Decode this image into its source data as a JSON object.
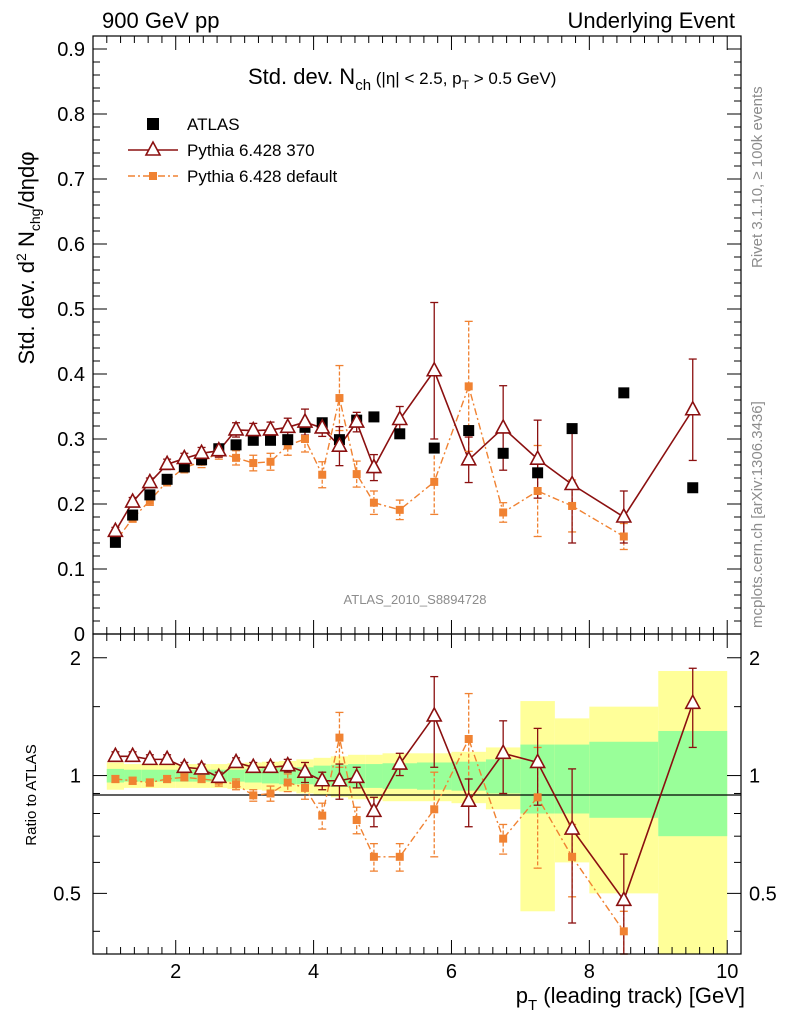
{
  "header": {
    "left": "900 GeV pp",
    "right": "Underlying Event"
  },
  "side_text": {
    "upper": "Rivet 3.1.10, ≥ 100k events",
    "lower": "mcplots.cern.ch [arXiv:1306.3436]"
  },
  "analysis_label": "ATLAS_2010_S8894728",
  "colors": {
    "data": "#000000",
    "pythia_370": "#8b1010",
    "pythia_default": "#f08232",
    "band_inner": "#99ff99",
    "band_outer": "#ffff99"
  },
  "chart_data": [
    {
      "type": "scatter",
      "panel": "main",
      "title": "Std. dev. N_ch (|η| < 2.5, p_T > 0.5 GeV)",
      "ylabel": "Std. dev. d² N_chg/dηdφ",
      "xlim": [
        0.8,
        10.2
      ],
      "ylim": [
        0,
        0.92
      ],
      "yticks": [
        0,
        0.1,
        0.2,
        0.3,
        0.4,
        0.5,
        0.6,
        0.7,
        0.8,
        0.9
      ],
      "legend_position": "top-left",
      "series": [
        {
          "name": "ATLAS",
          "marker": "square",
          "x": [
            1.125,
            1.375,
            1.625,
            1.875,
            2.125,
            2.375,
            2.625,
            2.875,
            3.125,
            3.375,
            3.625,
            3.875,
            4.125,
            4.375,
            4.625,
            4.875,
            5.25,
            5.75,
            6.25,
            6.75,
            7.25,
            7.75,
            8.5,
            9.5
          ],
          "y": [
            0.141,
            0.183,
            0.214,
            0.238,
            0.257,
            0.268,
            0.285,
            0.291,
            0.298,
            0.298,
            0.299,
            0.318,
            0.325,
            0.299,
            0.329,
            0.334,
            0.308,
            0.286,
            0.313,
            0.278,
            0.248,
            0.316,
            0.371,
            0.225
          ]
        },
        {
          "name": "Pythia 6.428 370",
          "marker": "open-triangle",
          "x": [
            1.125,
            1.375,
            1.625,
            1.875,
            2.125,
            2.375,
            2.625,
            2.875,
            3.125,
            3.375,
            3.625,
            3.875,
            4.125,
            4.375,
            4.625,
            4.875,
            5.25,
            5.75,
            6.25,
            6.75,
            7.25,
            7.75,
            8.5,
            9.5
          ],
          "y": [
            0.158,
            0.203,
            0.233,
            0.261,
            0.27,
            0.278,
            0.282,
            0.314,
            0.313,
            0.314,
            0.318,
            0.326,
            0.317,
            0.289,
            0.326,
            0.256,
            0.33,
            0.405,
            0.268,
            0.317,
            0.269,
            0.23,
            0.18,
            0.345
          ],
          "err": [
            0.006,
            0.007,
            0.007,
            0.008,
            0.008,
            0.009,
            0.01,
            0.011,
            0.011,
            0.012,
            0.014,
            0.02,
            0.013,
            0.03,
            0.015,
            0.02,
            0.02,
            0.105,
            0.035,
            0.065,
            0.06,
            0.09,
            0.04,
            0.078
          ]
        },
        {
          "name": "Pythia 6.428 default",
          "marker": "square",
          "x": [
            1.125,
            1.375,
            1.625,
            1.875,
            2.125,
            2.375,
            2.625,
            2.875,
            3.125,
            3.375,
            3.625,
            3.875,
            4.125,
            4.375,
            4.625,
            4.875,
            5.25,
            5.75,
            6.25,
            6.75,
            7.25,
            7.75,
            8.5,
            9.5
          ],
          "y": [
            0.142,
            0.178,
            0.205,
            0.235,
            0.256,
            0.265,
            0.279,
            0.271,
            0.263,
            0.265,
            0.29,
            0.3,
            0.245,
            0.363,
            0.246,
            0.202,
            0.191,
            0.234,
            0.381,
            0.187,
            0.22,
            0.197,
            0.15,
            null
          ],
          "err": [
            0.005,
            0.006,
            0.007,
            0.007,
            0.008,
            0.009,
            0.01,
            0.011,
            0.012,
            0.013,
            0.015,
            0.02,
            0.02,
            0.05,
            0.02,
            0.018,
            0.015,
            0.05,
            0.1,
            0.015,
            0.07,
            0.04,
            0.02,
            null
          ]
        }
      ]
    },
    {
      "type": "scatter",
      "panel": "ratio",
      "ylabel": "Ratio to ATLAS",
      "xlabel": "p_T (leading track) [GeV]",
      "xlim": [
        0.8,
        10.2
      ],
      "ylim": [
        0.35,
        2.3
      ],
      "yticks": [
        0.5,
        1,
        2
      ],
      "xticks": [
        2,
        4,
        6,
        8,
        10
      ],
      "bands": {
        "x_edges": [
          1.0,
          1.25,
          1.5,
          1.75,
          2.0,
          2.25,
          2.5,
          2.75,
          3.0,
          3.25,
          3.5,
          3.75,
          4.0,
          4.25,
          4.5,
          4.75,
          5.0,
          5.5,
          6.0,
          6.5,
          7.0,
          7.5,
          8.0,
          9.0,
          10.0
        ],
        "inner": [
          0.04,
          0.035,
          0.035,
          0.035,
          0.035,
          0.035,
          0.035,
          0.035,
          0.04,
          0.045,
          0.05,
          0.05,
          0.06,
          0.065,
          0.07,
          0.07,
          0.075,
          0.08,
          0.085,
          0.1,
          0.2,
          0.2,
          0.22,
          0.3
        ],
        "outer": [
          0.08,
          0.07,
          0.07,
          0.07,
          0.07,
          0.07,
          0.07,
          0.075,
          0.08,
          0.085,
          0.09,
          0.1,
          0.11,
          0.12,
          0.13,
          0.13,
          0.14,
          0.14,
          0.15,
          0.18,
          0.55,
          0.4,
          0.5,
          0.85
        ]
      },
      "series": [
        {
          "name": "Pythia 6.428 370",
          "x": [
            1.125,
            1.375,
            1.625,
            1.875,
            2.125,
            2.375,
            2.625,
            2.875,
            3.125,
            3.375,
            3.625,
            3.875,
            4.125,
            4.375,
            4.625,
            4.875,
            5.25,
            5.75,
            6.25,
            6.75,
            7.25,
            7.75,
            8.5,
            9.5
          ],
          "y": [
            1.12,
            1.12,
            1.1,
            1.1,
            1.05,
            1.04,
            0.99,
            1.08,
            1.05,
            1.05,
            1.06,
            1.02,
            0.97,
            0.97,
            0.99,
            0.81,
            1.07,
            1.42,
            0.86,
            1.14,
            1.08,
            0.73,
            0.48,
            1.53
          ],
          "err": [
            0.03,
            0.03,
            0.03,
            0.03,
            0.03,
            0.03,
            0.03,
            0.03,
            0.03,
            0.03,
            0.04,
            0.06,
            0.05,
            0.1,
            0.06,
            0.07,
            0.07,
            0.37,
            0.12,
            0.24,
            0.24,
            0.31,
            0.15,
            0.35
          ]
        },
        {
          "name": "Pythia 6.428 default",
          "x": [
            1.125,
            1.375,
            1.625,
            1.875,
            2.125,
            2.375,
            2.625,
            2.875,
            3.125,
            3.375,
            3.625,
            3.875,
            4.125,
            4.375,
            4.625,
            4.875,
            5.25,
            5.75,
            6.25,
            6.75,
            7.25,
            7.75,
            8.5
          ],
          "y": [
            0.98,
            0.97,
            0.96,
            0.98,
            0.99,
            0.98,
            0.97,
            0.95,
            0.89,
            0.9,
            0.96,
            0.93,
            0.79,
            1.25,
            0.77,
            0.62,
            0.62,
            0.82,
            1.24,
            0.69,
            0.88,
            0.62,
            0.4
          ],
          "err": [
            0.02,
            0.02,
            0.02,
            0.02,
            0.02,
            0.02,
            0.03,
            0.03,
            0.03,
            0.04,
            0.05,
            0.06,
            0.06,
            0.2,
            0.06,
            0.05,
            0.05,
            0.2,
            0.38,
            0.06,
            0.3,
            0.13,
            0.05
          ]
        }
      ]
    }
  ]
}
